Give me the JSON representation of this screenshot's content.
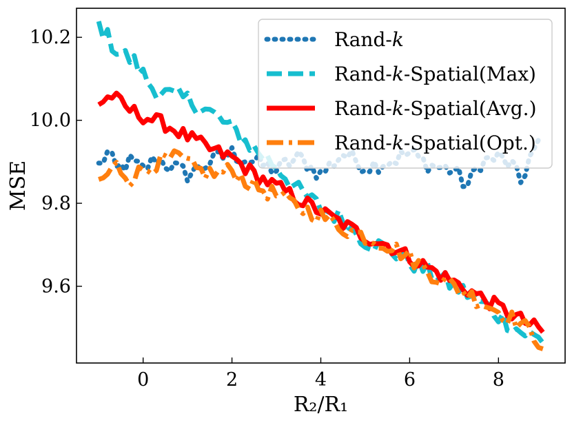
{
  "chart_data": {
    "type": "line",
    "title": "",
    "xlabel": "R₂/R₁",
    "ylabel": "MSE",
    "xlim": [
      -1.5,
      9.5
    ],
    "ylim": [
      9.415,
      10.27
    ],
    "xticks": [
      0,
      2,
      4,
      6,
      8
    ],
    "xtick_labels": [
      "0",
      "2",
      "4",
      "6",
      "8"
    ],
    "yticks": [
      9.6,
      9.8,
      10.0,
      10.2
    ],
    "ytick_labels": [
      "9.6",
      "9.8",
      "10.0",
      "10.2"
    ],
    "legend_position": "top-right",
    "x_range": [
      -1.0,
      9.0
    ],
    "x_step": 0.1,
    "series": [
      {
        "name": "Rand-k",
        "label_parts": [
          "Rand-",
          "k"
        ],
        "color": "#1f77b4",
        "style": "dotted",
        "key_points": [
          [
            -1.0,
            9.89
          ],
          [
            -0.8,
            9.92
          ],
          [
            -0.6,
            9.88
          ],
          [
            -0.3,
            9.9
          ],
          [
            0.0,
            9.88
          ],
          [
            0.3,
            9.91
          ],
          [
            0.6,
            9.89
          ],
          [
            1.0,
            9.87
          ],
          [
            1.5,
            9.9
          ],
          [
            2.0,
            9.92
          ],
          [
            2.5,
            9.9
          ],
          [
            3.0,
            9.88
          ],
          [
            3.5,
            9.91
          ],
          [
            4.0,
            9.87
          ],
          [
            4.5,
            9.92
          ],
          [
            5.0,
            9.89
          ],
          [
            5.5,
            9.9
          ],
          [
            6.0,
            9.92
          ],
          [
            6.5,
            9.89
          ],
          [
            7.0,
            9.88
          ],
          [
            7.3,
            9.84
          ],
          [
            7.6,
            9.9
          ],
          [
            8.0,
            9.91
          ],
          [
            8.3,
            9.89
          ],
          [
            8.5,
            9.85
          ],
          [
            8.7,
            9.91
          ],
          [
            9.0,
            9.95
          ]
        ]
      },
      {
        "name": "Rand-k-Spatial(Max)",
        "label_parts": [
          "Rand-",
          "k",
          "-Spatial(Max)"
        ],
        "color": "#17becf",
        "style": "dashed",
        "key_points": [
          [
            -1.0,
            10.23
          ],
          [
            -0.6,
            10.17
          ],
          [
            -0.2,
            10.14
          ],
          [
            0.2,
            10.08
          ],
          [
            0.6,
            10.06
          ],
          [
            1.0,
            10.05
          ],
          [
            1.5,
            10.02
          ],
          [
            2.0,
            9.98
          ],
          [
            2.5,
            9.93
          ],
          [
            3.0,
            9.89
          ],
          [
            3.5,
            9.83
          ],
          [
            4.0,
            9.79
          ],
          [
            4.5,
            9.76
          ],
          [
            5.0,
            9.71
          ],
          [
            5.5,
            9.69
          ],
          [
            6.0,
            9.66
          ],
          [
            6.5,
            9.63
          ],
          [
            7.0,
            9.6
          ],
          [
            7.5,
            9.57
          ],
          [
            8.0,
            9.53
          ],
          [
            8.5,
            9.49
          ],
          [
            9.0,
            9.47
          ]
        ]
      },
      {
        "name": "Rand-k-Spatial(Avg.)",
        "label_parts": [
          "Rand-",
          "k",
          "-Spatial(Avg.)"
        ],
        "color": "#ff0000",
        "style": "solid",
        "key_points": [
          [
            -1.0,
            10.04
          ],
          [
            -0.7,
            10.06
          ],
          [
            -0.4,
            10.03
          ],
          [
            0.0,
            10.01
          ],
          [
            0.5,
            9.99
          ],
          [
            1.0,
            9.96
          ],
          [
            1.5,
            9.93
          ],
          [
            2.0,
            9.91
          ],
          [
            2.5,
            9.87
          ],
          [
            3.0,
            9.84
          ],
          [
            3.5,
            9.81
          ],
          [
            4.0,
            9.78
          ],
          [
            4.5,
            9.75
          ],
          [
            5.0,
            9.72
          ],
          [
            5.5,
            9.7
          ],
          [
            6.0,
            9.67
          ],
          [
            6.5,
            9.64
          ],
          [
            7.0,
            9.61
          ],
          [
            7.5,
            9.58
          ],
          [
            8.0,
            9.55
          ],
          [
            8.5,
            9.52
          ],
          [
            9.0,
            9.49
          ]
        ]
      },
      {
        "name": "Rand-k-Spatial(Opt.)",
        "label_parts": [
          "Rand-",
          "k",
          "-Spatial(Opt.)"
        ],
        "color": "#ff7f0e",
        "style": "dashdot",
        "key_points": [
          [
            -1.0,
            9.85
          ],
          [
            -0.6,
            9.89
          ],
          [
            -0.3,
            9.86
          ],
          [
            0.0,
            9.88
          ],
          [
            0.4,
            9.9
          ],
          [
            0.8,
            9.91
          ],
          [
            1.2,
            9.88
          ],
          [
            1.6,
            9.87
          ],
          [
            2.0,
            9.88
          ],
          [
            2.5,
            9.84
          ],
          [
            3.0,
            9.82
          ],
          [
            3.5,
            9.79
          ],
          [
            4.0,
            9.77
          ],
          [
            4.5,
            9.74
          ],
          [
            5.0,
            9.72
          ],
          [
            5.5,
            9.7
          ],
          [
            6.0,
            9.67
          ],
          [
            6.5,
            9.63
          ],
          [
            7.0,
            9.6
          ],
          [
            7.5,
            9.57
          ],
          [
            8.0,
            9.54
          ],
          [
            8.5,
            9.51
          ],
          [
            9.0,
            9.46
          ]
        ]
      }
    ]
  }
}
